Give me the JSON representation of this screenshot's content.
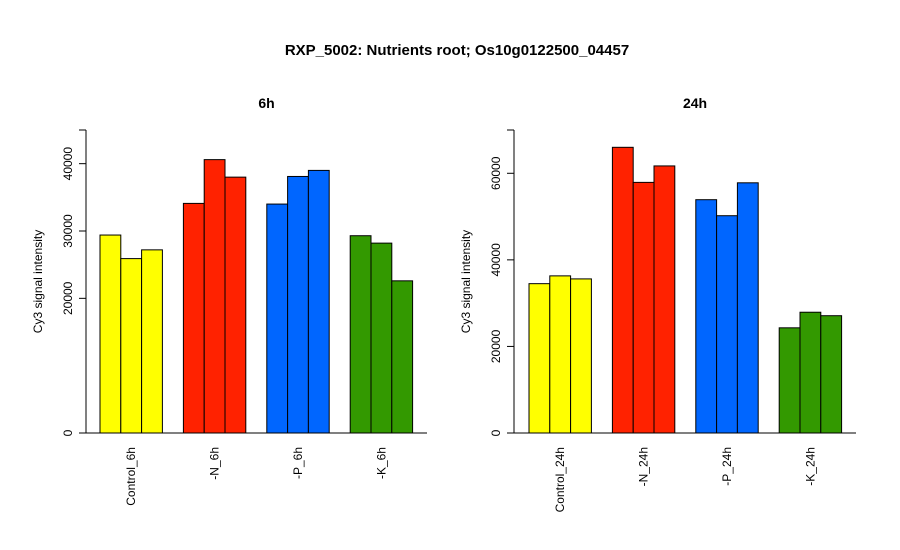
{
  "title": "RXP_5002: Nutrients root; Os10g0122500_04457",
  "chart_data": [
    {
      "type": "bar",
      "title": "6h",
      "ylabel": "Cy3 signal intensity",
      "ylim": [
        0,
        45000
      ],
      "yticks": [
        0,
        20000,
        30000,
        40000
      ],
      "categories": [
        "Control_6h",
        "-N_6h",
        "-P_6h",
        "-K_6h"
      ],
      "colors": [
        "#ffff00",
        "#ff2200",
        "#0066ff",
        "#339900"
      ],
      "groups": [
        {
          "category": "Control_6h",
          "values": [
            29400,
            25900,
            27200
          ]
        },
        {
          "category": "-N_6h",
          "values": [
            34100,
            40600,
            38000
          ]
        },
        {
          "category": "-P_6h",
          "values": [
            34000,
            38100,
            39000
          ]
        },
        {
          "category": "-K_6h",
          "values": [
            29300,
            28200,
            22600
          ]
        }
      ]
    },
    {
      "type": "bar",
      "title": "24h",
      "ylabel": "Cy3 signal intensity",
      "ylim": [
        0,
        70000
      ],
      "yticks": [
        0,
        20000,
        40000,
        60000
      ],
      "categories": [
        "Control_24h",
        "-N_24h",
        "-P_24h",
        "-K_24h"
      ],
      "colors": [
        "#ffff00",
        "#ff2200",
        "#0066ff",
        "#339900"
      ],
      "groups": [
        {
          "category": "Control_24h",
          "values": [
            34500,
            36300,
            35600
          ]
        },
        {
          "category": "-N_24h",
          "values": [
            66000,
            57900,
            61700
          ]
        },
        {
          "category": "-P_24h",
          "values": [
            53900,
            50200,
            57800
          ]
        },
        {
          "category": "-K_24h",
          "values": [
            24300,
            27900,
            27100
          ]
        }
      ]
    }
  ]
}
